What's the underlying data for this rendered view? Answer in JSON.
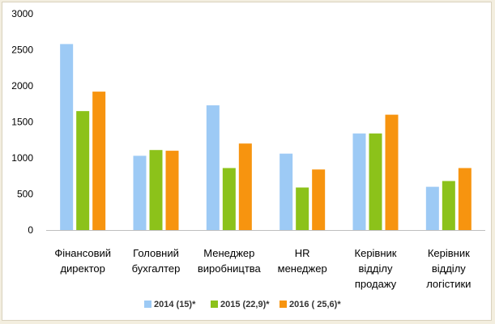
{
  "chart_data": {
    "type": "bar",
    "categories": [
      [
        "Фінансовий",
        "директор"
      ],
      [
        "Головний",
        "бухгалтер"
      ],
      [
        "Менеджер",
        "виробництва"
      ],
      [
        "HR",
        "менеджер"
      ],
      [
        "Керівник",
        "відділу",
        "продажу"
      ],
      [
        "Керівник",
        "відділу",
        "логістики"
      ]
    ],
    "series": [
      {
        "name": "2014 (15)*",
        "color": "#9dcaf5",
        "values": [
          2580,
          1030,
          1730,
          1060,
          1340,
          600
        ]
      },
      {
        "name": "2015 (22,9)*",
        "color": "#8cc21a",
        "values": [
          1650,
          1110,
          860,
          590,
          1340,
          680
        ]
      },
      {
        "name": "2016 ( 25,6)*",
        "color": "#f7940f",
        "values": [
          1920,
          1100,
          1200,
          840,
          1600,
          860
        ]
      }
    ],
    "ylim": [
      0,
      3000
    ],
    "yticks": [
      0,
      500,
      1000,
      1500,
      2000,
      2500,
      3000
    ],
    "grid": false,
    "legend": "bottom"
  }
}
